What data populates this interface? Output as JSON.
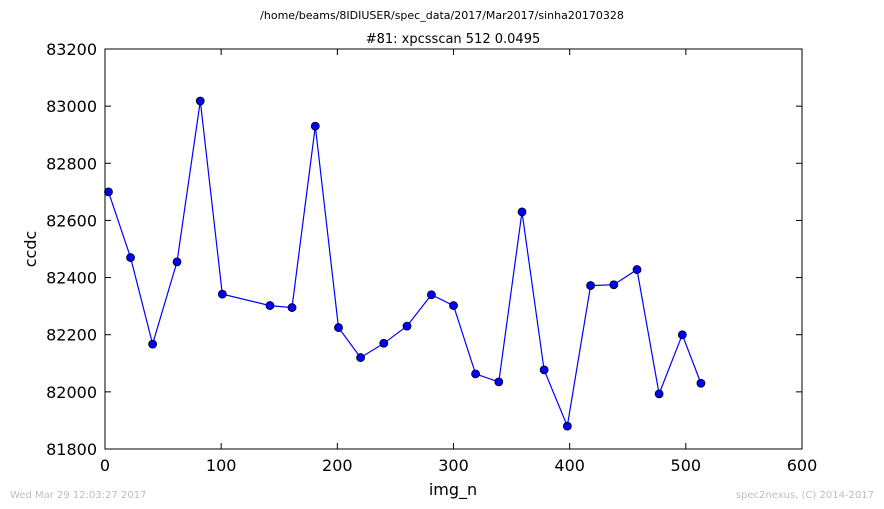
{
  "page": {
    "supertitle": "/home/beams/8IDIUSER/spec_data/2017/Mar2017/sinha20170328",
    "footer_left": "Wed Mar 29 12:03:27 2017",
    "footer_right": "spec2nexus, (C) 2014-2017"
  },
  "chart_data": {
    "type": "line",
    "title": "#81: xpcsscan 512 0.0495",
    "xlabel": "img_n",
    "ylabel": "ccdc",
    "xlim": [
      0,
      600
    ],
    "ylim": [
      81800,
      83200
    ],
    "xticks": [
      0,
      100,
      200,
      300,
      400,
      500,
      600
    ],
    "yticks": [
      81800,
      82000,
      82200,
      82400,
      82600,
      82800,
      83000,
      83200
    ],
    "grid": false,
    "marker": "circle",
    "line_color": "#0000ff",
    "marker_color": "#0000ff",
    "x": [
      3,
      22,
      41,
      62,
      82,
      101,
      142,
      161,
      181,
      201,
      220,
      240,
      260,
      281,
      300,
      319,
      339,
      359,
      378,
      398,
      418,
      438,
      458,
      477,
      497,
      513
    ],
    "y": [
      82700,
      82470,
      82167,
      82455,
      83018,
      82342,
      82302,
      82295,
      82930,
      82225,
      82120,
      82170,
      82230,
      82340,
      82302,
      82063,
      82035,
      82630,
      82077,
      81880,
      82372,
      82375,
      82428,
      81993,
      82200,
      82030
    ]
  }
}
